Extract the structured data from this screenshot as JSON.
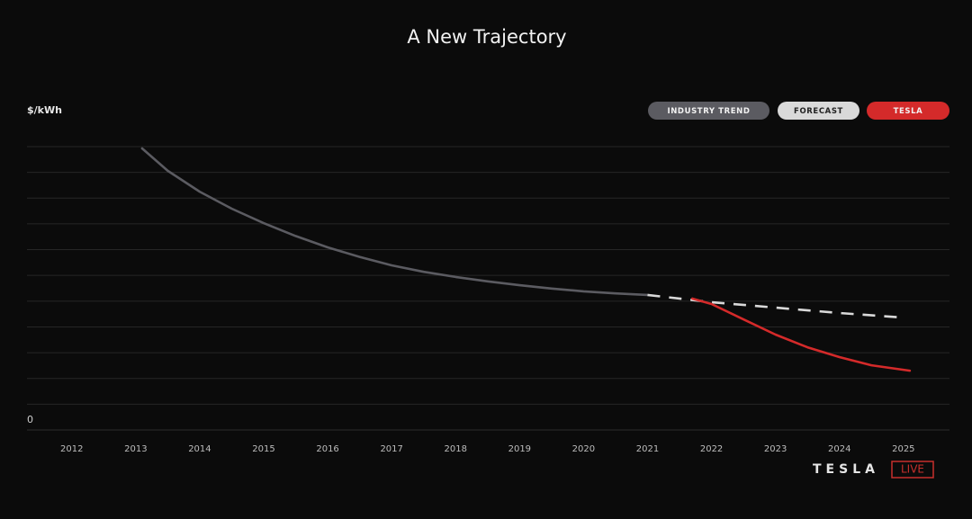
{
  "chart_data": {
    "type": "line",
    "title": "A New Trajectory",
    "y_label": "$/kWh",
    "xlim": [
      2011.3,
      2025.72
    ],
    "xticks": [
      2012,
      2013,
      2014,
      2015,
      2016,
      2017,
      2018,
      2019,
      2020,
      2021,
      2022,
      2023,
      2024,
      2025
    ],
    "ylim": [
      0,
      11
    ],
    "yticks": [
      0
    ],
    "ygrid": [
      1,
      2,
      3,
      4,
      5,
      6,
      7,
      8,
      9,
      10,
      11
    ],
    "grid": true,
    "legend": "top-right",
    "series": [
      {
        "name": "INDUSTRY TREND",
        "color": "#5b5b61",
        "dash": false,
        "x": [
          2013.1,
          2013.5,
          2014,
          2014.5,
          2015,
          2015.5,
          2016,
          2016.5,
          2017,
          2017.5,
          2018,
          2018.5,
          2019,
          2019.5,
          2020,
          2020.5,
          2021
        ],
        "values": [
          10.93,
          10.06,
          9.25,
          8.59,
          8.03,
          7.53,
          7.09,
          6.72,
          6.39,
          6.14,
          5.94,
          5.77,
          5.62,
          5.49,
          5.38,
          5.3,
          5.24
        ]
      },
      {
        "name": "FORECAST",
        "color": "#d9d9d9",
        "dash": true,
        "x": [
          2021,
          2022,
          2023,
          2024,
          2025
        ],
        "values": [
          5.24,
          4.96,
          4.75,
          4.54,
          4.36
        ]
      },
      {
        "name": "TESLA",
        "color": "#d42a2a",
        "dash": false,
        "x": [
          2021.7,
          2022,
          2022.5,
          2023,
          2023.5,
          2024,
          2024.5,
          2025.1
        ],
        "values": [
          5.1,
          4.89,
          4.29,
          3.7,
          3.21,
          2.83,
          2.51,
          2.3
        ]
      }
    ]
  },
  "logo": {
    "brand": "TESLA",
    "badge": "LIVE"
  }
}
